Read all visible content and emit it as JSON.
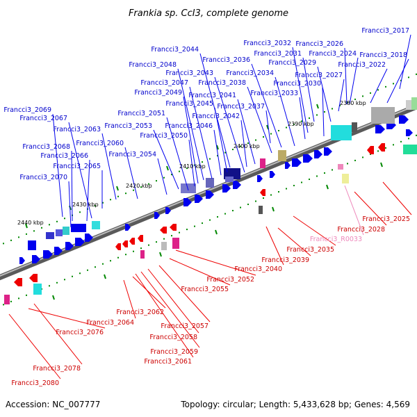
{
  "title": "Frankia sp. CcI3, complete genome",
  "footer": {
    "accession": "Accession: NC_007777",
    "stats": "Topology: circular; Length: 5,433,628 bp; Genes: 4,569"
  },
  "colors": {
    "forward": "#0000ee",
    "reverse": "#ee0000",
    "rna": "#ee88bb",
    "forward_label": "#0000cc",
    "reverse_label": "#cc0000",
    "rna_label": "#ee88bb",
    "tick": "#008800",
    "backbone": "#777777"
  },
  "scale_labels": [
    "2380 kbp",
    "2390 kbp",
    "2400 kbp",
    "2410 kbp",
    "2420 kbp",
    "2430 kbp",
    "2440 kbp"
  ],
  "forward_genes": [
    "Francci3_2017",
    "Francci3_2018",
    "Francci3_2022",
    "Francci3_2024",
    "Francci3_2026",
    "Francci3_2027",
    "Francci3_2029",
    "Francci3_2030",
    "Francci3_2031",
    "Francci3_2032",
    "Francci3_2033",
    "Francci3_2034",
    "Francci3_2036",
    "Francci3_2037",
    "Francci3_2038",
    "Francci3_2041",
    "Francci3_2042",
    "Francci3_2043",
    "Francci3_2044",
    "Francci3_2045",
    "Francci3_2046",
    "Francci3_2047",
    "Francci3_2048",
    "Francci3_2049",
    "Francci3_2050",
    "Francci3_2051",
    "Francci3_2053",
    "Francci3_2054",
    "Francci3_2060",
    "Francci3_2063",
    "Francci3_2065",
    "Francci3_2066",
    "Francci3_2067",
    "Francci3_2068",
    "Francci3_2069",
    "Francci3_2070"
  ],
  "reverse_genes": [
    "Francci3_2025",
    "Francci3_2028",
    "Francci3_R0033",
    "Francci3_2035",
    "Francci3_2039",
    "Francci3_2040",
    "Francci3_2052",
    "Francci3_2055",
    "Francci3_2057",
    "Francci3_2058",
    "Francci3_2059",
    "Francci3_2061",
    "Francci3_2062",
    "Francci3_2064",
    "Francci3_2076",
    "Francci3_2078",
    "Francci3_2080"
  ]
}
